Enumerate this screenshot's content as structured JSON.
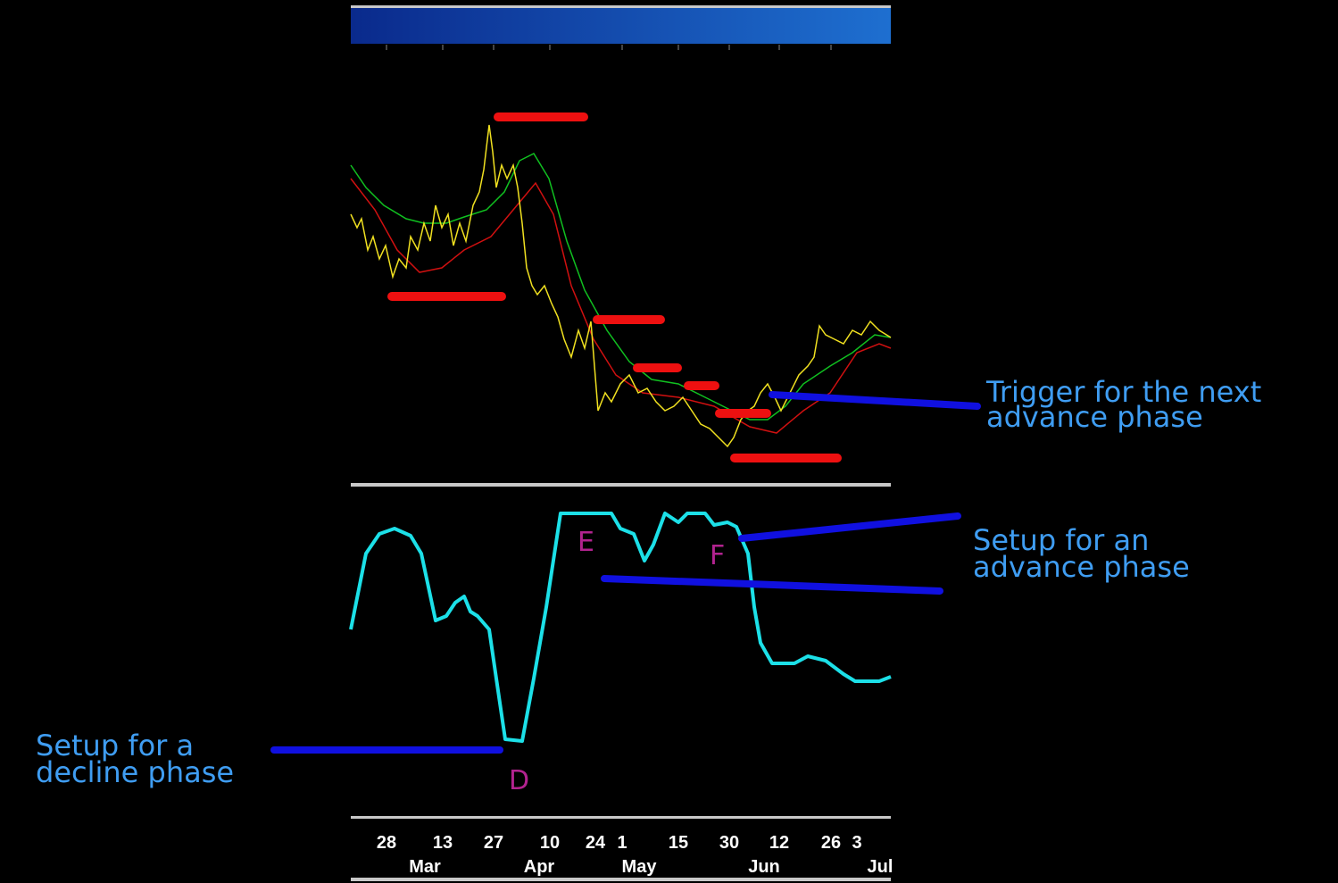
{
  "annotations": [
    {
      "lines": [
        "Trigger for the next",
        "advance phase"
      ]
    },
    {
      "lines": [
        "Setup for an",
        "advance phase"
      ]
    },
    {
      "lines": [
        "Setup for a",
        "decline phase"
      ]
    }
  ],
  "markers": [
    "D",
    "E",
    "F"
  ],
  "axis": {
    "days": [
      "28",
      "13",
      "27",
      "10",
      "24",
      "1",
      "15",
      "30",
      "12",
      "26",
      "3"
    ],
    "months": [
      "Mar",
      "Apr",
      "May",
      "Jun",
      "Jul"
    ]
  }
}
